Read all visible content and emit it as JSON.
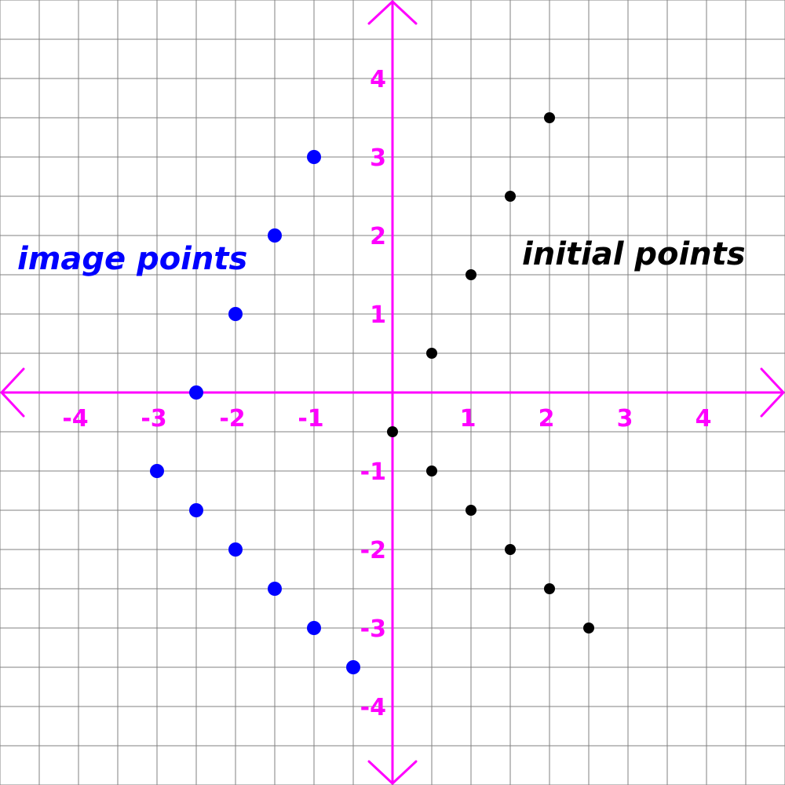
{
  "chart_data": {
    "type": "scatter",
    "xlim": [
      -5,
      5
    ],
    "ylim": [
      -5,
      5
    ],
    "grid": true,
    "grid_step": 0.5,
    "x_ticks": [
      -4,
      -3,
      -2,
      -1,
      1,
      2,
      3,
      4
    ],
    "y_ticks": [
      -4,
      -3,
      -2,
      -1,
      1,
      2,
      3,
      4
    ],
    "series": [
      {
        "name": "initial points",
        "points": [
          [
            2,
            3.5
          ],
          [
            1.5,
            2.5
          ],
          [
            1,
            1.5
          ],
          [
            0.5,
            0.5
          ],
          [
            0,
            -0.5
          ],
          [
            0.5,
            -1
          ],
          [
            1,
            -1.5
          ],
          [
            1.5,
            -2
          ],
          [
            2,
            -2.5
          ],
          [
            2.5,
            -3
          ]
        ]
      },
      {
        "name": "image points",
        "points": [
          [
            -1,
            3
          ],
          [
            -1.5,
            2
          ],
          [
            -2,
            1
          ],
          [
            -2.5,
            0
          ],
          [
            -3,
            -1
          ],
          [
            -2.5,
            -1.5
          ],
          [
            -2,
            -2
          ],
          [
            -1.5,
            -2.5
          ],
          [
            -1,
            -3
          ],
          [
            -0.5,
            -3.5
          ]
        ]
      }
    ]
  },
  "colors": {
    "axis": "#ff00ff",
    "grid": "#808080",
    "initial": "#000000",
    "image": "#0000ff"
  }
}
